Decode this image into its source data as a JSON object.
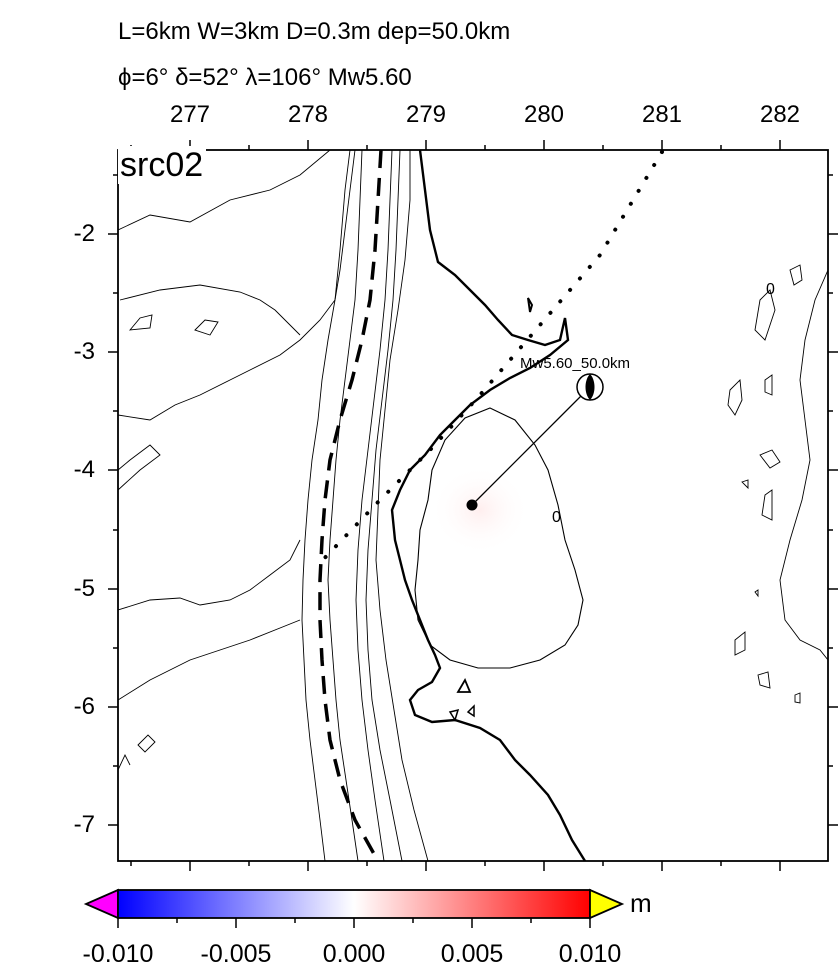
{
  "title": {
    "line1": "L=6km W=3km D=0.3m dep=50.0km",
    "line2": "ϕ=6° δ=52° λ=106° Mw5.60"
  },
  "panel_label": "src02",
  "map": {
    "x_ticks": [
      "277",
      "278",
      "279",
      "280",
      "281",
      "282"
    ],
    "y_ticks": [
      "-2",
      "-3",
      "-4",
      "-5",
      "-6",
      "-7"
    ],
    "epicenter_label": "Mw5.60_50.0km",
    "contour_labels": [
      "0",
      "0"
    ]
  },
  "colorbar": {
    "unit": "m",
    "ticks": [
      "-0.010",
      "-0.005",
      "0.000",
      "0.005",
      "0.010"
    ],
    "colors": {
      "under": "#ff00ff",
      "low": "#0000ff",
      "mid": "#ffffff",
      "high": "#ff0000",
      "over": "#ffff00"
    }
  }
}
